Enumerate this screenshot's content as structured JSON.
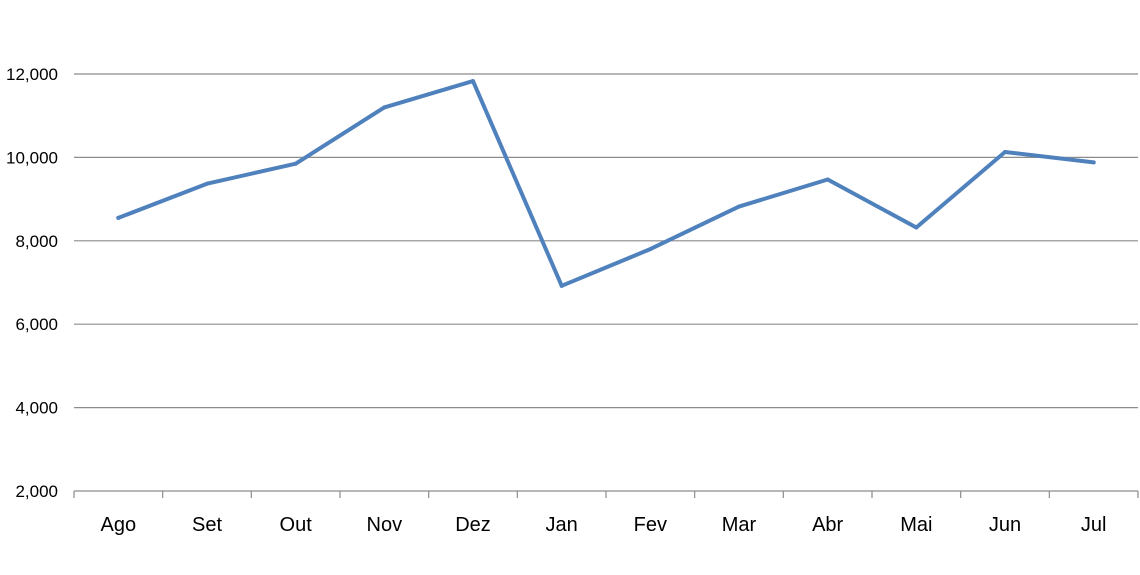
{
  "chart_data": {
    "type": "line",
    "title": "",
    "xlabel": "",
    "ylabel": "",
    "categories": [
      "Ago",
      "Set",
      "Out",
      "Nov",
      "Dez",
      "Jan",
      "Fev",
      "Mar",
      "Abr",
      "Mai",
      "Jun",
      "Jul"
    ],
    "series": [
      {
        "values": [
          8550,
          9370,
          9850,
          11200,
          11830,
          6920,
          7800,
          8820,
          9470,
          8320,
          10130,
          9880
        ],
        "color": "#4f81bd"
      }
    ],
    "ylim": [
      2000,
      12000
    ],
    "yticks": [
      2000,
      4000,
      6000,
      8000,
      10000,
      12000
    ],
    "ytick_labels": [
      "2,000",
      "4,000",
      "6,000",
      "8,000",
      "10,000",
      "12,000"
    ],
    "grid": true,
    "legend": "none"
  }
}
